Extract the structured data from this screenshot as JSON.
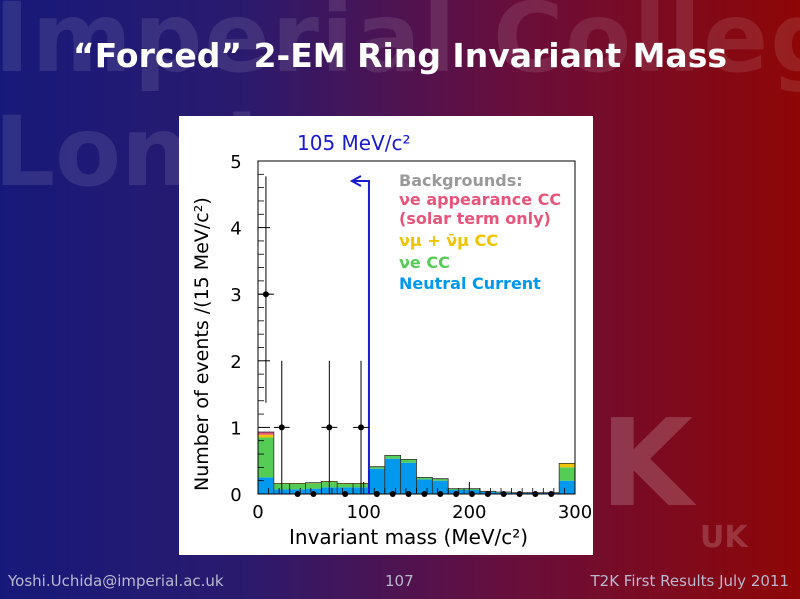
{
  "slide": {
    "title": "“Forced” 2-EM Ring Invariant Mass",
    "watermark": {
      "line1": "Imperial Colleg",
      "line2": "London",
      "logo": "K",
      "logo_sub": "UK"
    },
    "footer_left": "Yoshi.Uchida@imperial.ac.uk",
    "footer_center": "107",
    "footer_right": "T2K First Results July 2011"
  },
  "chart_data": {
    "type": "bar",
    "xlabel": "Invariant mass (MeV/c²)",
    "ylabel": "Number of events /(15 MeV/c²)",
    "xlim": [
      0,
      300
    ],
    "ylim": [
      0,
      5
    ],
    "xticks": [
      0,
      100,
      200,
      300
    ],
    "yticks": [
      0,
      1,
      2,
      3,
      4,
      5
    ],
    "bin_width": 15,
    "cut": {
      "value": 105,
      "label": "105 MeV/c²",
      "color": "#1a1ad0"
    },
    "legend": {
      "title": "Backgrounds:",
      "title_color": "#999999",
      "entries": [
        {
          "label": "νe appearance CC",
          "label2": "(solar term only)",
          "color": "#e8547a"
        },
        {
          "label": "νμ + ν̄μ CC",
          "color": "#f0c400"
        },
        {
          "label": "νe CC",
          "color": "#55cc55"
        },
        {
          "label": "Neutral Current",
          "color": "#0099ee"
        }
      ]
    },
    "background_bins": [
      {
        "x0": 0,
        "nc": 0.25,
        "nue": 0.6,
        "numu": 0.04,
        "app": 0.04
      },
      {
        "x0": 15,
        "nc": 0.07,
        "nue": 0.08,
        "numu": 0.01,
        "app": 0.0
      },
      {
        "x0": 30,
        "nc": 0.07,
        "nue": 0.08,
        "numu": 0.01,
        "app": 0.0
      },
      {
        "x0": 45,
        "nc": 0.08,
        "nue": 0.08,
        "numu": 0.01,
        "app": 0.0
      },
      {
        "x0": 60,
        "nc": 0.1,
        "nue": 0.08,
        "numu": 0.01,
        "app": 0.0
      },
      {
        "x0": 75,
        "nc": 0.1,
        "nue": 0.05,
        "numu": 0.01,
        "app": 0.0
      },
      {
        "x0": 90,
        "nc": 0.1,
        "nue": 0.05,
        "numu": 0.01,
        "app": 0.0
      },
      {
        "x0": 105,
        "nc": 0.38,
        "nue": 0.03,
        "numu": 0.0,
        "app": 0.0
      },
      {
        "x0": 120,
        "nc": 0.53,
        "nue": 0.05,
        "numu": 0.0,
        "app": 0.0
      },
      {
        "x0": 135,
        "nc": 0.47,
        "nue": 0.05,
        "numu": 0.0,
        "app": 0.0
      },
      {
        "x0": 150,
        "nc": 0.22,
        "nue": 0.03,
        "numu": 0.0,
        "app": 0.0
      },
      {
        "x0": 165,
        "nc": 0.2,
        "nue": 0.03,
        "numu": 0.0,
        "app": 0.0
      },
      {
        "x0": 180,
        "nc": 0.06,
        "nue": 0.02,
        "numu": 0.0,
        "app": 0.0
      },
      {
        "x0": 195,
        "nc": 0.06,
        "nue": 0.02,
        "numu": 0.0,
        "app": 0.0
      },
      {
        "x0": 210,
        "nc": 0.03,
        "nue": 0.01,
        "numu": 0.0,
        "app": 0.0
      },
      {
        "x0": 225,
        "nc": 0.02,
        "nue": 0.01,
        "numu": 0.0,
        "app": 0.0
      },
      {
        "x0": 240,
        "nc": 0.02,
        "nue": 0.0,
        "numu": 0.0,
        "app": 0.0
      },
      {
        "x0": 255,
        "nc": 0.02,
        "nue": 0.0,
        "numu": 0.0,
        "app": 0.0
      },
      {
        "x0": 270,
        "nc": 0.02,
        "nue": 0.0,
        "numu": 0.0,
        "app": 0.0
      },
      {
        "x0": 285,
        "nc": 0.2,
        "nue": 0.2,
        "numu": 0.06,
        "app": 0.0
      }
    ],
    "data_points": [
      {
        "x": 7.5,
        "y": 3,
        "err_up": 1.77,
        "err_down": 1.63
      },
      {
        "x": 22.5,
        "y": 1,
        "err_up": 1.0,
        "err_down": 1.0
      },
      {
        "x": 37.5,
        "y": 0,
        "err_up": 0,
        "err_down": 0
      },
      {
        "x": 52.5,
        "y": 0,
        "err_up": 0,
        "err_down": 0
      },
      {
        "x": 67.5,
        "y": 1,
        "err_up": 1.0,
        "err_down": 1.0
      },
      {
        "x": 82.5,
        "y": 0,
        "err_up": 0,
        "err_down": 0
      },
      {
        "x": 97.5,
        "y": 1,
        "err_up": 1.0,
        "err_down": 1.0
      },
      {
        "x": 112.5,
        "y": 0,
        "err_up": 0,
        "err_down": 0
      },
      {
        "x": 127.5,
        "y": 0,
        "err_up": 0,
        "err_down": 0
      },
      {
        "x": 142.5,
        "y": 0,
        "err_up": 0,
        "err_down": 0
      },
      {
        "x": 157.5,
        "y": 0,
        "err_up": 0,
        "err_down": 0
      },
      {
        "x": 172.5,
        "y": 0,
        "err_up": 0,
        "err_down": 0
      },
      {
        "x": 187.5,
        "y": 0,
        "err_up": 0,
        "err_down": 0
      },
      {
        "x": 202.5,
        "y": 0,
        "err_up": 0,
        "err_down": 0
      },
      {
        "x": 217.5,
        "y": 0,
        "err_up": 0,
        "err_down": 0
      },
      {
        "x": 232.5,
        "y": 0,
        "err_up": 0,
        "err_down": 0
      },
      {
        "x": 247.5,
        "y": 0,
        "err_up": 0,
        "err_down": 0
      },
      {
        "x": 262.5,
        "y": 0,
        "err_up": 0,
        "err_down": 0
      },
      {
        "x": 277.5,
        "y": 0,
        "err_up": 0,
        "err_down": 0
      }
    ]
  }
}
